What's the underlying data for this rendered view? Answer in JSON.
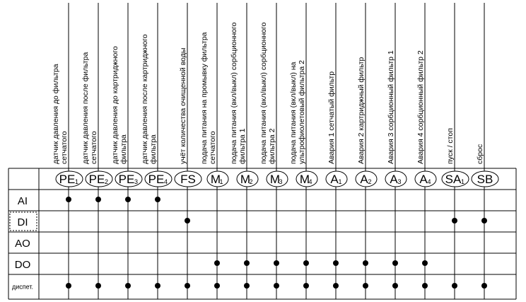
{
  "columns": [
    {
      "tag": "PE",
      "sub": "1",
      "lines": [
        "датчик давления до фильтра",
        "сетчатого"
      ]
    },
    {
      "tag": "PE",
      "sub": "2",
      "lines": [
        "датчик давления после фильтра",
        "сетчатого"
      ]
    },
    {
      "tag": "PE",
      "sub": "3",
      "lines": [
        "датчик давления до картриджного",
        "фильтра"
      ]
    },
    {
      "tag": "PE",
      "sub": "4",
      "lines": [
        "датчик давления после картриджного",
        "фильтра"
      ]
    },
    {
      "tag": "FS",
      "sub": "",
      "lines": [
        "учёт количества очищенной воды"
      ]
    },
    {
      "tag": "M",
      "sub": "1",
      "lines": [
        "подача питания на промывку фильтра",
        "сетчатого"
      ]
    },
    {
      "tag": "M",
      "sub": "2",
      "lines": [
        "подача питания (вкл/выкл) сорбционного",
        "фильтра 1"
      ]
    },
    {
      "tag": "M",
      "sub": "3",
      "lines": [
        "подача питания  (вкл/выкл) сорбционного",
        "фильтра 2"
      ]
    },
    {
      "tag": "M",
      "sub": "4",
      "lines": [
        "подача питания (вкл/выкл) на",
        "ультрофиолетовый фильтра 2"
      ]
    },
    {
      "tag": "A",
      "sub": "1",
      "lines": [
        "Авария 1 сетчатый фильтр"
      ]
    },
    {
      "tag": "A",
      "sub": "2",
      "lines": [
        "Авария 2 картриджный фильтр"
      ]
    },
    {
      "tag": "A",
      "sub": "3",
      "lines": [
        "Авария 3 сорбционный фильтр 1"
      ]
    },
    {
      "tag": "A",
      "sub": "4",
      "lines": [
        "Авария 4 сорбционный фильтр 2"
      ]
    },
    {
      "tag": "SA",
      "sub": "1",
      "lines": [
        "пуск / стоп"
      ]
    },
    {
      "tag": "SB",
      "sub": "",
      "lines": [
        "сброс"
      ]
    }
  ],
  "rows": [
    {
      "label": "AI",
      "marks": [
        0,
        1,
        2,
        3
      ]
    },
    {
      "label": "DI",
      "marks": [
        4,
        13,
        14
      ],
      "highlight": true
    },
    {
      "label": "AO",
      "marks": []
    },
    {
      "label": "DO",
      "marks": [
        5,
        6,
        7,
        8,
        9,
        10,
        11,
        12
      ]
    },
    {
      "label": "диспет.",
      "small": true,
      "marks": [
        0,
        1,
        2,
        3,
        4,
        5,
        6,
        7,
        8,
        9,
        10,
        11,
        12,
        13,
        14
      ]
    }
  ]
}
